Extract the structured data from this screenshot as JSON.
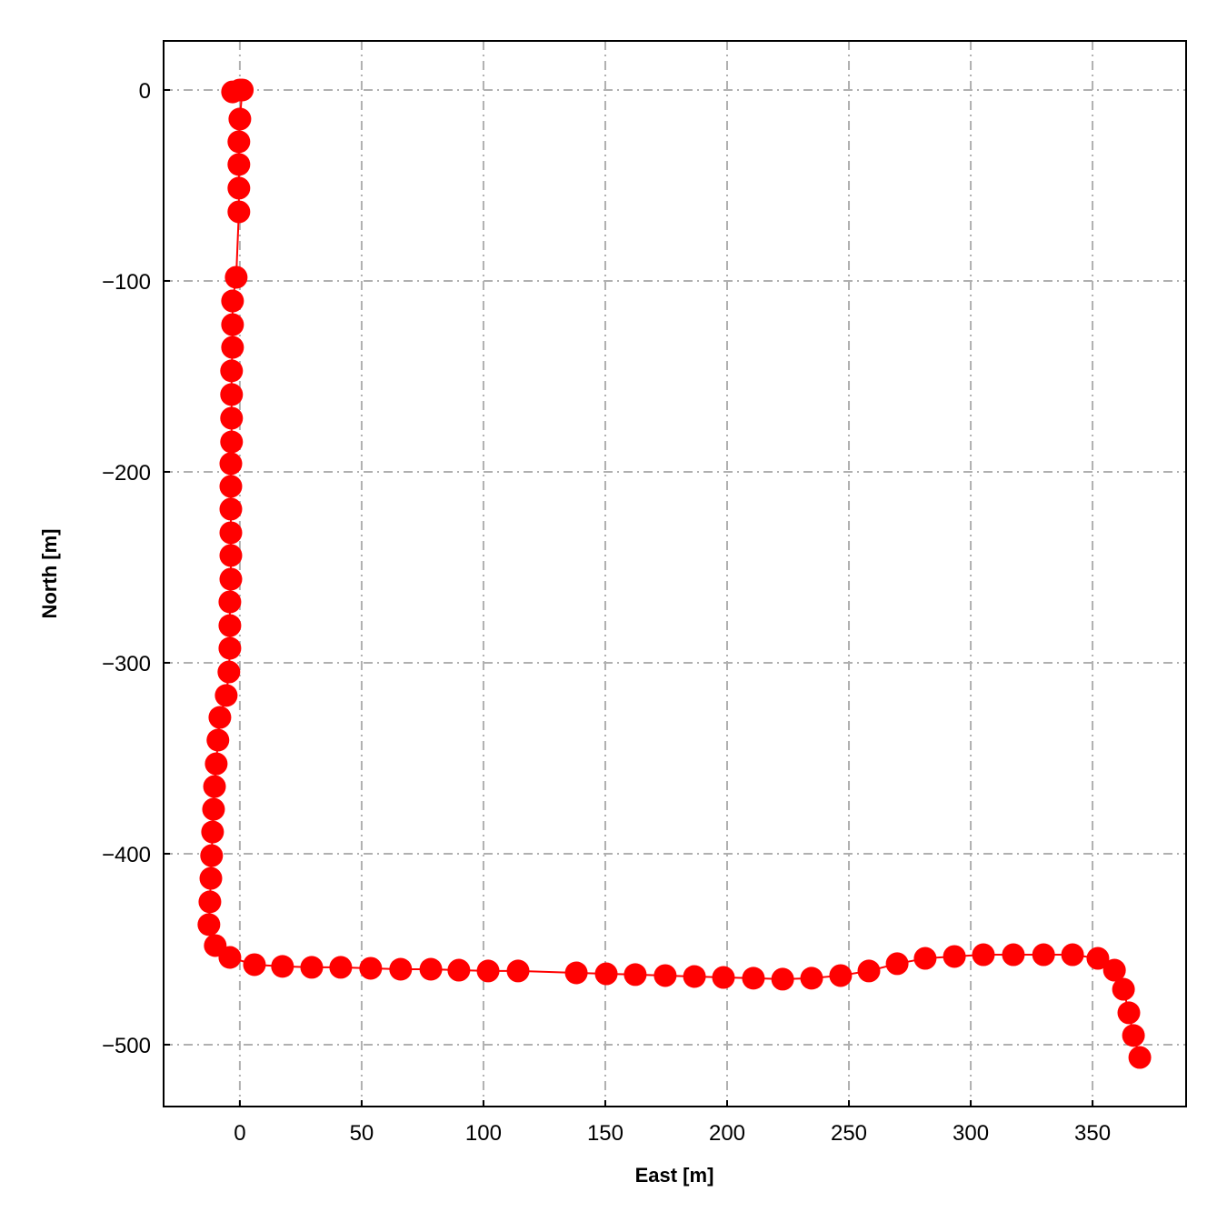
{
  "chart_data": {
    "type": "line",
    "xlabel": "East [m]",
    "ylabel": "North [m]",
    "x": [
      -3,
      0,
      1,
      0,
      -0.4,
      -0.4,
      -0.4,
      -0.4,
      -1.5,
      -3.0,
      -3.0,
      -3.0,
      -3.4,
      -3.4,
      -3.4,
      -3.4,
      -3.7,
      -3.7,
      -3.7,
      -3.7,
      -3.7,
      -3.7,
      -4.1,
      -4.1,
      -4.1,
      -4.5,
      -5.6,
      -8.2,
      -9.0,
      -9.7,
      -10.4,
      -10.8,
      -11.2,
      -11.6,
      -11.9,
      -12.3,
      -12.7,
      -10.1,
      -4.1,
      6.0,
      17.5,
      29.5,
      41.4,
      53.7,
      66.0,
      78.4,
      89.9,
      101.9,
      114.2,
      138.1,
      150.4,
      162.3,
      174.6,
      186.6,
      198.5,
      210.8,
      222.8,
      234.7,
      246.6,
      258.2,
      269.8,
      281.3,
      293.3,
      305.2,
      317.5,
      329.9,
      341.8,
      352.2,
      359.0,
      362.7,
      364.9,
      366.8,
      369.4
    ],
    "values": [
      -1,
      0,
      0,
      -15.2,
      -27.1,
      -39.0,
      -51.4,
      -63.8,
      -98.1,
      -110.5,
      -122.9,
      -134.8,
      -147.1,
      -159.5,
      -171.9,
      -184.3,
      -195.7,
      -207.6,
      -219.5,
      -231.9,
      -243.8,
      -256.2,
      -268.1,
      -280.5,
      -292.4,
      -304.8,
      -317.1,
      -328.6,
      -340.5,
      -352.9,
      -364.8,
      -376.7,
      -388.6,
      -401.0,
      -412.9,
      -425.2,
      -437.1,
      -448.1,
      -454.3,
      -458.1,
      -459.0,
      -459.5,
      -459.5,
      -460.0,
      -460.5,
      -460.5,
      -461.0,
      -461.4,
      -461.4,
      -462.4,
      -462.9,
      -463.3,
      -463.8,
      -464.3,
      -464.8,
      -465.2,
      -465.7,
      -465.2,
      -463.8,
      -461.4,
      -457.6,
      -454.8,
      -453.8,
      -452.9,
      -452.9,
      -452.9,
      -452.9,
      -454.8,
      -461.0,
      -471.0,
      -483.3,
      -495.2,
      -506.7
    ],
    "color": "#ff0000",
    "xlim": [
      -31.3,
      388.4
    ],
    "ylim": [
      -532.4,
      25.7
    ],
    "xticks": [
      0,
      50,
      100,
      150,
      200,
      250,
      300,
      350
    ],
    "yticks": [
      {
        "value": -500,
        "label": "−500"
      },
      {
        "value": -400,
        "label": "−400"
      },
      {
        "value": -300,
        "label": "−300"
      },
      {
        "value": -200,
        "label": "−200"
      },
      {
        "value": -100,
        "label": "−100"
      },
      0
    ],
    "grid": true
  }
}
